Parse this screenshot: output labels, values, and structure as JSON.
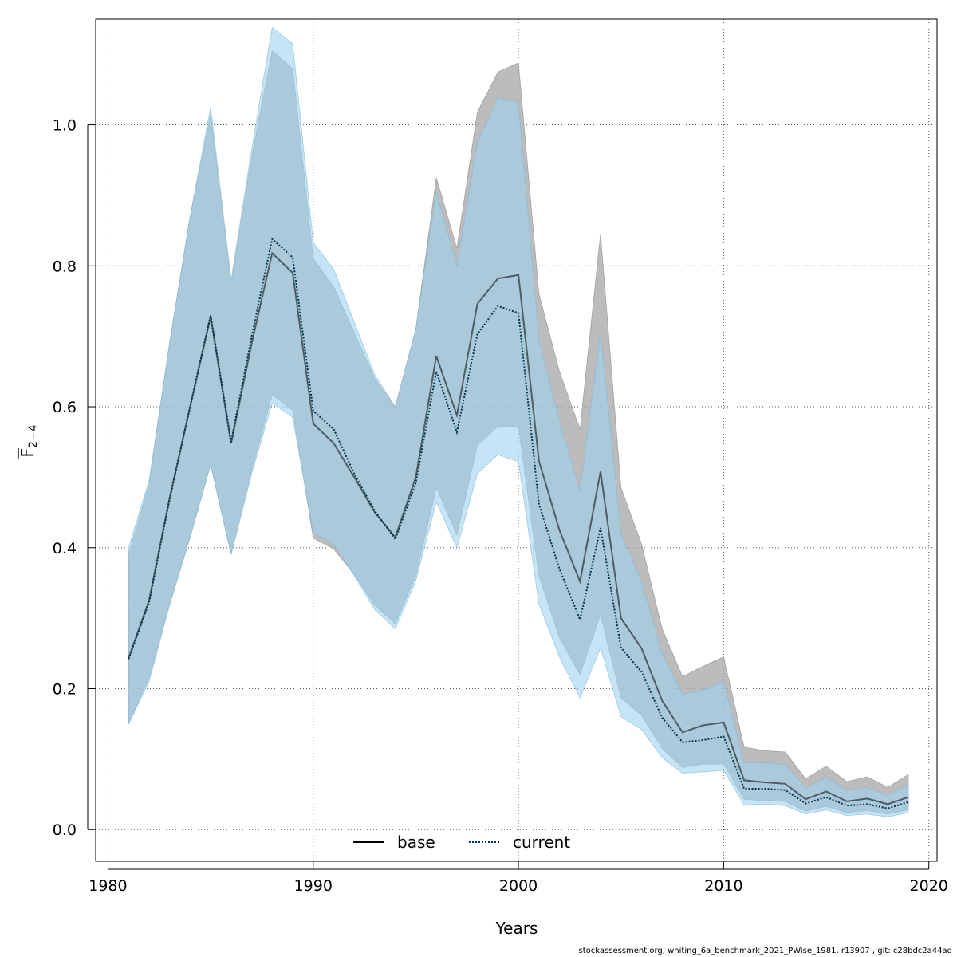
{
  "chart_data": {
    "type": "line",
    "title": "",
    "xlabel": "Years",
    "ylabel": "F̄ 2−4",
    "ylabel_main": "F",
    "ylabel_sub": "2−4",
    "xlim": [
      1979.4,
      2020.4
    ],
    "ylim": [
      -0.045,
      1.15
    ],
    "x_ticks": [
      "1980",
      "1990",
      "2000",
      "2010",
      "2020"
    ],
    "y_ticks": [
      "0.0",
      "0.2",
      "0.4",
      "0.6",
      "0.8",
      "1.0"
    ],
    "grid": true,
    "legend_position": "bottom-center",
    "colors": {
      "base_line": "#000000",
      "base_band": "#a6a6a6",
      "current_line": "#00334d",
      "current_band": "#9fd4f0"
    },
    "x": [
      1981,
      1982,
      1983,
      1984,
      1985,
      1986,
      1987,
      1988,
      1989,
      1990,
      1991,
      1992,
      1993,
      1994,
      1995,
      1996,
      1997,
      1998,
      1999,
      2000,
      2001,
      2002,
      2003,
      2004,
      2005,
      2006,
      2007,
      2008,
      2009,
      2010,
      2011,
      2012,
      2013,
      2014,
      2015,
      2016,
      2017,
      2018,
      2019
    ],
    "series": [
      {
        "name": "base",
        "style": "solid",
        "values": [
          0.243,
          0.325,
          0.47,
          0.6,
          0.728,
          0.548,
          0.69,
          0.818,
          0.79,
          0.576,
          0.548,
          0.5,
          0.45,
          0.415,
          0.5,
          0.672,
          0.588,
          0.746,
          0.782,
          0.787,
          0.523,
          0.425,
          0.352,
          0.508,
          0.3,
          0.257,
          0.183,
          0.138,
          0.148,
          0.152,
          0.07,
          0.067,
          0.065,
          0.043,
          0.054,
          0.04,
          0.044,
          0.036,
          0.046
        ],
        "lower": [
          0.15,
          0.215,
          0.32,
          0.415,
          0.518,
          0.392,
          0.51,
          0.617,
          0.595,
          0.414,
          0.398,
          0.362,
          0.318,
          0.292,
          0.36,
          0.485,
          0.418,
          0.545,
          0.572,
          0.572,
          0.36,
          0.272,
          0.22,
          0.305,
          0.187,
          0.162,
          0.115,
          0.088,
          0.093,
          0.093,
          0.043,
          0.041,
          0.04,
          0.026,
          0.033,
          0.024,
          0.027,
          0.022,
          0.028
        ],
        "upper": [
          0.39,
          0.49,
          0.69,
          0.87,
          1.015,
          0.775,
          0.955,
          1.105,
          1.08,
          0.81,
          0.77,
          0.705,
          0.64,
          0.6,
          0.71,
          0.925,
          0.825,
          1.018,
          1.075,
          1.088,
          0.76,
          0.65,
          0.568,
          0.845,
          0.485,
          0.405,
          0.285,
          0.217,
          0.232,
          0.245,
          0.117,
          0.112,
          0.11,
          0.072,
          0.09,
          0.068,
          0.075,
          0.06,
          0.078
        ]
      },
      {
        "name": "current",
        "style": "dotted",
        "values": [
          0.242,
          0.322,
          0.468,
          0.6,
          0.73,
          0.55,
          0.7,
          0.838,
          0.812,
          0.594,
          0.568,
          0.505,
          0.452,
          0.412,
          0.492,
          0.65,
          0.564,
          0.703,
          0.743,
          0.733,
          0.462,
          0.37,
          0.298,
          0.428,
          0.258,
          0.224,
          0.159,
          0.124,
          0.127,
          0.132,
          0.058,
          0.058,
          0.056,
          0.037,
          0.046,
          0.034,
          0.036,
          0.03,
          0.039
        ],
        "lower": [
          0.15,
          0.21,
          0.318,
          0.415,
          0.518,
          0.39,
          0.505,
          0.605,
          0.585,
          0.421,
          0.406,
          0.36,
          0.312,
          0.285,
          0.353,
          0.465,
          0.4,
          0.505,
          0.532,
          0.522,
          0.32,
          0.245,
          0.187,
          0.258,
          0.16,
          0.142,
          0.102,
          0.08,
          0.082,
          0.084,
          0.035,
          0.036,
          0.034,
          0.022,
          0.028,
          0.02,
          0.022,
          0.018,
          0.024
        ],
        "upper": [
          0.4,
          0.495,
          0.69,
          0.87,
          1.025,
          0.78,
          0.965,
          1.138,
          1.115,
          0.833,
          0.795,
          0.72,
          0.645,
          0.6,
          0.71,
          0.905,
          0.8,
          0.975,
          1.038,
          1.032,
          0.695,
          0.58,
          0.48,
          0.705,
          0.42,
          0.352,
          0.25,
          0.192,
          0.198,
          0.21,
          0.095,
          0.095,
          0.092,
          0.059,
          0.074,
          0.055,
          0.06,
          0.048,
          0.064
        ]
      }
    ]
  },
  "legend": {
    "base": "base",
    "current": "current"
  },
  "footer": "stockassessment.org, whiting_6a_benchmark_2021_PWise_1981, r13907 , git: c28bdc2a44ad"
}
